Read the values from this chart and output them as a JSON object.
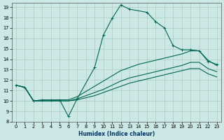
{
  "xlabel": "Humidex (Indice chaleur)",
  "bg_color": "#cce8e4",
  "grid_color": "#aaccbb",
  "line_color": "#006655",
  "xlim": [
    -0.5,
    23.5
  ],
  "ylim": [
    8,
    19.4
  ],
  "xticks": [
    0,
    1,
    2,
    3,
    4,
    5,
    6,
    7,
    8,
    9,
    10,
    11,
    12,
    13,
    14,
    15,
    16,
    17,
    18,
    19,
    20,
    21,
    22,
    23
  ],
  "yticks": [
    8,
    9,
    10,
    11,
    12,
    13,
    14,
    15,
    16,
    17,
    18,
    19
  ],
  "lines": [
    {
      "x": [
        0,
        1,
        2,
        3,
        4,
        5,
        6,
        7,
        9,
        10,
        11,
        12,
        13,
        15,
        16,
        17,
        18,
        19,
        20,
        21,
        22,
        23
      ],
      "y": [
        11.5,
        11.3,
        10.0,
        10.1,
        10.1,
        10.1,
        8.5,
        10.2,
        13.2,
        16.3,
        17.9,
        19.2,
        18.8,
        18.5,
        17.6,
        17.0,
        15.3,
        14.9,
        14.9,
        14.8,
        13.8,
        13.5
      ],
      "marker": "+"
    },
    {
      "x": [
        0,
        1,
        2,
        3,
        4,
        5,
        6,
        7,
        8,
        9,
        10,
        11,
        12,
        13,
        14,
        15,
        16,
        17,
        18,
        19,
        20,
        21,
        22,
        23
      ],
      "y": [
        11.5,
        11.3,
        10.0,
        10.0,
        10.0,
        10.1,
        10.1,
        10.4,
        10.9,
        11.4,
        11.9,
        12.4,
        12.9,
        13.2,
        13.5,
        13.7,
        13.9,
        14.1,
        14.3,
        14.5,
        14.8,
        14.8,
        13.9,
        13.4
      ],
      "marker": null
    },
    {
      "x": [
        0,
        1,
        2,
        3,
        4,
        5,
        6,
        7,
        8,
        9,
        10,
        11,
        12,
        13,
        14,
        15,
        16,
        17,
        18,
        19,
        20,
        21,
        22,
        23
      ],
      "y": [
        11.5,
        11.3,
        10.0,
        10.0,
        10.0,
        10.0,
        10.0,
        10.2,
        10.5,
        10.8,
        11.1,
        11.5,
        11.9,
        12.2,
        12.4,
        12.6,
        12.8,
        13.0,
        13.2,
        13.4,
        13.7,
        13.7,
        13.1,
        12.8
      ],
      "marker": null
    },
    {
      "x": [
        0,
        1,
        2,
        3,
        4,
        5,
        6,
        7,
        8,
        9,
        10,
        11,
        12,
        13,
        14,
        15,
        16,
        17,
        18,
        19,
        20,
        21,
        22,
        23
      ],
      "y": [
        11.5,
        11.3,
        10.0,
        10.0,
        10.0,
        10.0,
        10.0,
        10.1,
        10.3,
        10.5,
        10.8,
        11.1,
        11.4,
        11.7,
        11.9,
        12.1,
        12.3,
        12.5,
        12.7,
        12.9,
        13.1,
        13.1,
        12.6,
        12.3
      ],
      "marker": null
    }
  ]
}
